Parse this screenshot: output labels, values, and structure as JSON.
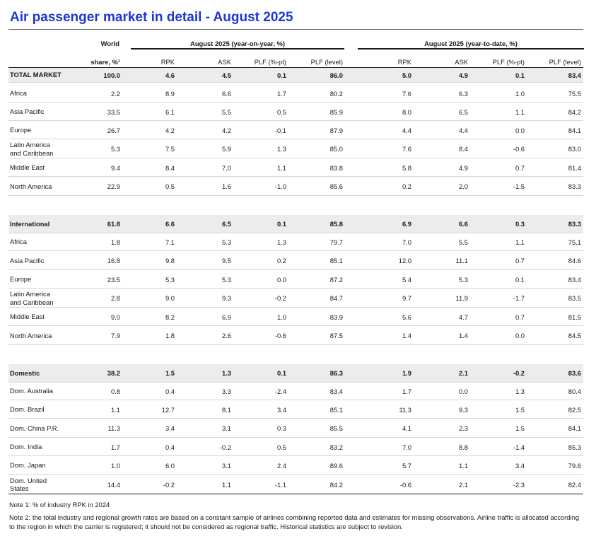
{
  "title": "Air passenger market in detail - August 2025",
  "header": {
    "world_top": "World",
    "world_bottom": "share, %¹",
    "group_yoy": "August 2025 (year-on-year, %)",
    "group_ytd": "August 2025 (year-to-date, %)",
    "cols": [
      "RPK",
      "ASK",
      "PLF (%-pt)",
      "PLF (level)",
      "RPK",
      "ASK",
      "PLF (%-pt)",
      "PLF (level)"
    ]
  },
  "rows": [
    {
      "label": "TOTAL MARKET",
      "vals": [
        "100.0",
        "4.6",
        "4.5",
        "0.1",
        "86.0",
        "5.0",
        "4.9",
        "0.1",
        "83.4"
      ]
    },
    {
      "label": "Africa",
      "vals": [
        "2.2",
        "8.9",
        "6.6",
        "1.7",
        "80.2",
        "7.6",
        "6.3",
        "1.0",
        "75.5"
      ]
    },
    {
      "label": "Asia Pacific",
      "vals": [
        "33.5",
        "6.1",
        "5.5",
        "0.5",
        "85.9",
        "8.0",
        "6.5",
        "1.1",
        "84.2"
      ]
    },
    {
      "label": "Europe",
      "vals": [
        "26.7",
        "4.2",
        "4.2",
        "-0.1",
        "87.9",
        "4.4",
        "4.4",
        "0.0",
        "84.1"
      ]
    },
    {
      "label": "Latin America\nand Caribbean",
      "vals": [
        "5.3",
        "7.5",
        "5.9",
        "1.3",
        "85.0",
        "7.6",
        "8.4",
        "-0.6",
        "83.0"
      ]
    },
    {
      "label": "Middle East",
      "vals": [
        "9.4",
        "8.4",
        "7.0",
        "1.1",
        "83.8",
        "5.8",
        "4.9",
        "0.7",
        "81.4"
      ]
    },
    {
      "label": "North America",
      "vals": [
        "22.9",
        "0.5",
        "1.6",
        "-1.0",
        "85.6",
        "0.2",
        "2.0",
        "-1.5",
        "83.3"
      ]
    },
    {
      "label": "International",
      "vals": [
        "61.8",
        "6.6",
        "6.5",
        "0.1",
        "85.8",
        "6.9",
        "6.6",
        "0.3",
        "83.3"
      ]
    },
    {
      "label": "Africa",
      "vals": [
        "1.8",
        "7.1",
        "5.3",
        "1.3",
        "79.7",
        "7.0",
        "5.5",
        "1.1",
        "75.1"
      ]
    },
    {
      "label": "Asia Pacific",
      "vals": [
        "16.8",
        "9.8",
        "9.5",
        "0.2",
        "85.1",
        "12.0",
        "11.1",
        "0.7",
        "84.6"
      ]
    },
    {
      "label": "Europe",
      "vals": [
        "23.5",
        "5.3",
        "5.3",
        "0.0",
        "87.2",
        "5.4",
        "5.3",
        "0.1",
        "83.4"
      ]
    },
    {
      "label": "Latin America\nand Caribbean",
      "vals": [
        "2.8",
        "9.0",
        "9.3",
        "-0.2",
        "84.7",
        "9.7",
        "11.9",
        "-1.7",
        "83.5"
      ]
    },
    {
      "label": "Middle East",
      "vals": [
        "9.0",
        "8.2",
        "6.9",
        "1.0",
        "83.9",
        "5.6",
        "4.7",
        "0.7",
        "81.5"
      ]
    },
    {
      "label": "North America",
      "vals": [
        "7.9",
        "1.8",
        "2.6",
        "-0.6",
        "87.5",
        "1.4",
        "1.4",
        "0.0",
        "84.5"
      ]
    },
    {
      "label": "Domestic",
      "vals": [
        "38.2",
        "1.5",
        "1.3",
        "0.1",
        "86.3",
        "1.9",
        "2.1",
        "-0.2",
        "83.6"
      ]
    },
    {
      "label": "Dom. Australia",
      "vals": [
        "0.8",
        "0.4",
        "3.3",
        "-2.4",
        "83.4",
        "1.7",
        "0.0",
        "1.3",
        "80.4"
      ]
    },
    {
      "label": "Dom. Brazil",
      "vals": [
        "1.1",
        "12.7",
        "8.1",
        "3.4",
        "85.1",
        "11.3",
        "9.3",
        "1.5",
        "82.5"
      ]
    },
    {
      "label": "Dom. China P.R.",
      "vals": [
        "11.3",
        "3.4",
        "3.1",
        "0.3",
        "85.5",
        "4.1",
        "2.3",
        "1.5",
        "84.1"
      ]
    },
    {
      "label": "Dom. India",
      "vals": [
        "1.7",
        "0.4",
        "-0.2",
        "0.5",
        "83.2",
        "7.0",
        "8.8",
        "-1.4",
        "85.3"
      ]
    },
    {
      "label": "Dom. Japan",
      "vals": [
        "1.0",
        "6.0",
        "3.1",
        "2.4",
        "89.6",
        "5.7",
        "1.1",
        "3.4",
        "79.6"
      ]
    },
    {
      "label": "Dom. United\nStates",
      "vals": [
        "14.4",
        "-0.2",
        "1.1",
        "-1.1",
        "84.2",
        "-0.6",
        "2.1",
        "-2.3",
        "82.4"
      ]
    }
  ],
  "notes": [
    "Note 1: % of industry RPK in 2024",
    "Note 2: the total industry and regional growth rates are based on a constant sample of airlines combining reported data and estimates for missing observations. Airline traffic is allocated according to the region in which the carrier is registered; it should not be considered as regional traffic. Historical statistics are subject to revision."
  ],
  "colors": {
    "title": "#1f37d6",
    "shade": "#ececec"
  }
}
